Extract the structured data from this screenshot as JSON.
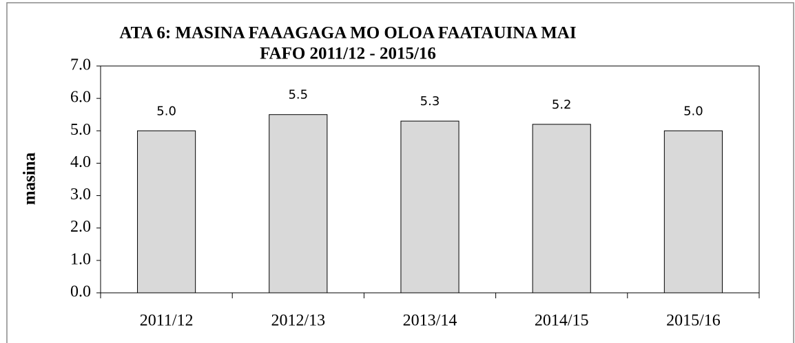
{
  "chart_data": {
    "type": "bar",
    "title": [
      "ATA 6: MASINA FAAAGAGA MO OLOA FAATAUINA MAI",
      "FAFO 2011/12 - 2015/16"
    ],
    "y_label": "masina",
    "categories": [
      "2011/12",
      "2012/13",
      "2013/14",
      "2014/15",
      "2015/16"
    ],
    "values": [
      5.0,
      5.5,
      5.3,
      5.2,
      5.0
    ],
    "value_labels": [
      "5.0",
      "5.5",
      "5.3",
      "5.2",
      "5.0"
    ],
    "color": "#d9d9d9",
    "ylim": [
      0,
      7
    ],
    "yticks": [
      {
        "value": 0,
        "label": "0.0"
      },
      {
        "value": 1,
        "label": "1.0"
      },
      {
        "value": 2,
        "label": "2.0"
      },
      {
        "value": 3,
        "label": "3.0"
      },
      {
        "value": 4,
        "label": "4.0"
      },
      {
        "value": 5,
        "label": "5.0"
      },
      {
        "value": 6,
        "label": "6.0"
      },
      {
        "value": 7,
        "label": "7.0"
      }
    ],
    "grid": false
  }
}
